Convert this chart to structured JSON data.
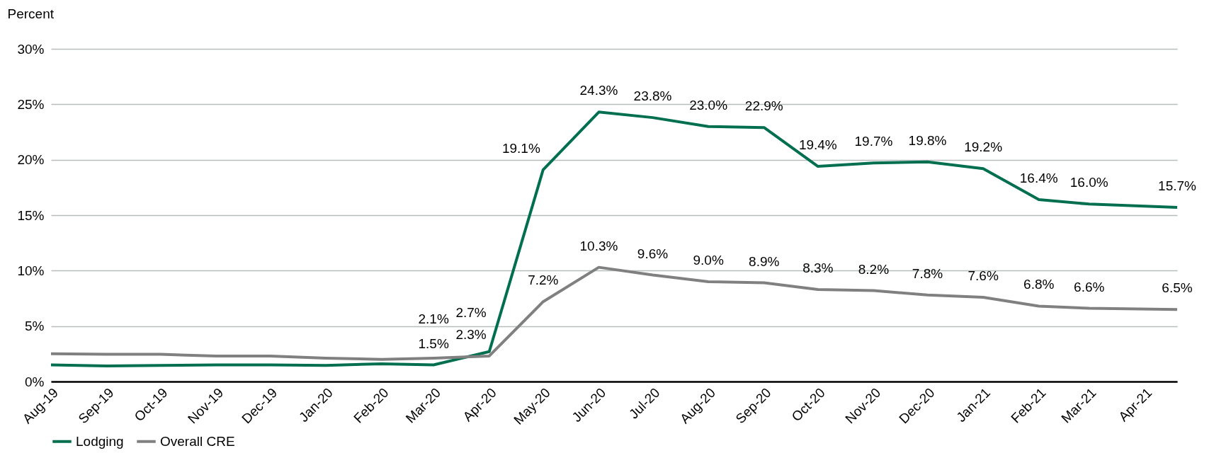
{
  "chart_data": {
    "type": "line",
    "ylabel": "Percent",
    "x": [
      "2019-08",
      "2019-09",
      "2019-10",
      "2019-11",
      "2019-12",
      "2020-01",
      "2020-02",
      "2020-03",
      "2020-04",
      "2020-05",
      "2020-06",
      "2020-07",
      "2020-08",
      "2020-09",
      "2020-10",
      "2020-11",
      "2020-12",
      "2021-01",
      "2021-02",
      "2021-03",
      "2021-04-19"
    ],
    "series": [
      {
        "name": "Lodging",
        "color": "#006f4f",
        "values": [
          1.5,
          1.4,
          1.45,
          1.5,
          1.5,
          1.45,
          1.6,
          1.5,
          2.7,
          19.1,
          24.3,
          23.8,
          23.0,
          22.9,
          19.4,
          19.7,
          19.8,
          19.2,
          16.4,
          16.0,
          15.7
        ],
        "value_labels": [
          null,
          null,
          null,
          null,
          null,
          null,
          null,
          "1.5%",
          "2.7%",
          "19.1%",
          "24.3%",
          "23.8%",
          "23.0%",
          "22.9%",
          "19.4%",
          "19.7%",
          "19.8%",
          "19.2%",
          "16.4%",
          "16.0%",
          "15.7%"
        ]
      },
      {
        "name": "Overall CRE",
        "color": "#808080",
        "values": [
          2.5,
          2.45,
          2.45,
          2.3,
          2.3,
          2.1,
          2.0,
          2.1,
          2.3,
          7.2,
          10.3,
          9.6,
          9.0,
          8.9,
          8.3,
          8.2,
          7.8,
          7.6,
          6.8,
          6.6,
          6.5
        ],
        "value_labels": [
          null,
          null,
          null,
          null,
          null,
          null,
          null,
          "2.1%",
          "2.3%",
          "7.2%",
          "10.3%",
          "9.6%",
          "9.0%",
          "8.9%",
          "8.3%",
          "8.2%",
          "7.8%",
          "7.6%",
          "6.8%",
          "6.6%",
          "6.5%"
        ]
      }
    ],
    "xlim": [
      "2019-08",
      "2021-04-19"
    ],
    "xticks": [
      {
        "value": "2019-08",
        "label": "Aug-19"
      },
      {
        "value": "2019-09",
        "label": "Sep-19"
      },
      {
        "value": "2019-10",
        "label": "Oct-19"
      },
      {
        "value": "2019-11",
        "label": "Nov-19"
      },
      {
        "value": "2019-12",
        "label": "Dec-19"
      },
      {
        "value": "2020-01",
        "label": "Jan-20"
      },
      {
        "value": "2020-02",
        "label": "Feb-20"
      },
      {
        "value": "2020-03",
        "label": "Mar-20"
      },
      {
        "value": "2020-04",
        "label": "Apr-20"
      },
      {
        "value": "2020-05",
        "label": "May-20"
      },
      {
        "value": "2020-06",
        "label": "Jun-20"
      },
      {
        "value": "2020-07",
        "label": "Jul-20"
      },
      {
        "value": "2020-08",
        "label": "Aug-20"
      },
      {
        "value": "2020-09",
        "label": "Sep-20"
      },
      {
        "value": "2020-10",
        "label": "Oct-20"
      },
      {
        "value": "2020-11",
        "label": "Nov-20"
      },
      {
        "value": "2020-12",
        "label": "Dec-20"
      },
      {
        "value": "2021-01",
        "label": "Jan-21"
      },
      {
        "value": "2021-02",
        "label": "Feb-21"
      },
      {
        "value": "2021-03",
        "label": "Mar-21"
      },
      {
        "value": "2021-04",
        "label": "Apr-21"
      }
    ],
    "ylim": [
      0,
      30
    ],
    "yticks": [
      {
        "value": 0,
        "label": "0%"
      },
      {
        "value": 5,
        "label": "5%"
      },
      {
        "value": 10,
        "label": "10%"
      },
      {
        "value": 15,
        "label": "15%"
      },
      {
        "value": 20,
        "label": "20%"
      },
      {
        "value": 25,
        "label": "25%"
      },
      {
        "value": 30,
        "label": "30%"
      }
    ],
    "grid": "y",
    "legend": "bottom",
    "marker": "none",
    "line_style": "solid"
  }
}
